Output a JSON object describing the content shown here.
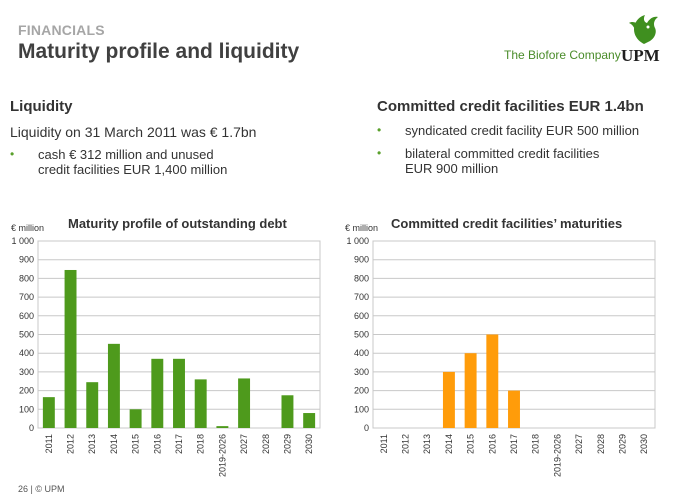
{
  "header": {
    "section": "FINANCIALS",
    "title": "Maturity profile and liquidity",
    "tagline": "The Biofore Company",
    "brand": "UPM"
  },
  "left_panel": {
    "heading": "Liquidity",
    "statement": "Liquidity on 31 March 2011 was € 1.7bn",
    "bullets": [
      "cash € 312 million and unused",
      "credit facilities EUR 1,400 million"
    ]
  },
  "right_panel": {
    "heading": "Committed credit facilities EUR 1.4bn",
    "bullets": [
      {
        "lines": [
          "syndicated credit facility EUR 500 million"
        ]
      },
      {
        "lines": [
          "bilateral committed credit facilities",
          "EUR 900 million"
        ]
      }
    ]
  },
  "footer": {
    "page": "26",
    "copyright": "© UPM"
  },
  "colors": {
    "green": "#4e9a1c",
    "orange": "#ff9c0a",
    "grid": "#c8c8c8",
    "bullet": "#5aa02c"
  },
  "chart_data": [
    {
      "type": "bar",
      "title": "Maturity profile of outstanding debt",
      "ylabel": "€ million",
      "ylim": [
        0,
        1000
      ],
      "yticks": [
        "0",
        "100",
        "200",
        "300",
        "400",
        "500",
        "600",
        "700",
        "800",
        "900",
        "1 000"
      ],
      "grid": true,
      "categories": [
        "2011",
        "2012",
        "2013",
        "2014",
        "2015",
        "2016",
        "2017",
        "2018",
        "2019-2026",
        "2027",
        "2028",
        "2029",
        "2030"
      ],
      "values": [
        165,
        845,
        245,
        450,
        100,
        370,
        370,
        260,
        10,
        265,
        0,
        175,
        80
      ],
      "color": "#4e9a1c"
    },
    {
      "type": "bar",
      "title": "Committed credit facilities’ maturities",
      "ylabel": "€ million",
      "ylim": [
        0,
        1000
      ],
      "yticks": [
        "0",
        "100",
        "200",
        "300",
        "400",
        "500",
        "600",
        "700",
        "800",
        "900",
        "1 000"
      ],
      "grid": true,
      "categories": [
        "2011",
        "2012",
        "2013",
        "2014",
        "2015",
        "2016",
        "2017",
        "2018",
        "2019-2026",
        "2027",
        "2028",
        "2029",
        "2030"
      ],
      "values": [
        0,
        0,
        0,
        300,
        400,
        500,
        200,
        0,
        0,
        0,
        0,
        0,
        0
      ],
      "color": "#ff9c0a"
    }
  ]
}
